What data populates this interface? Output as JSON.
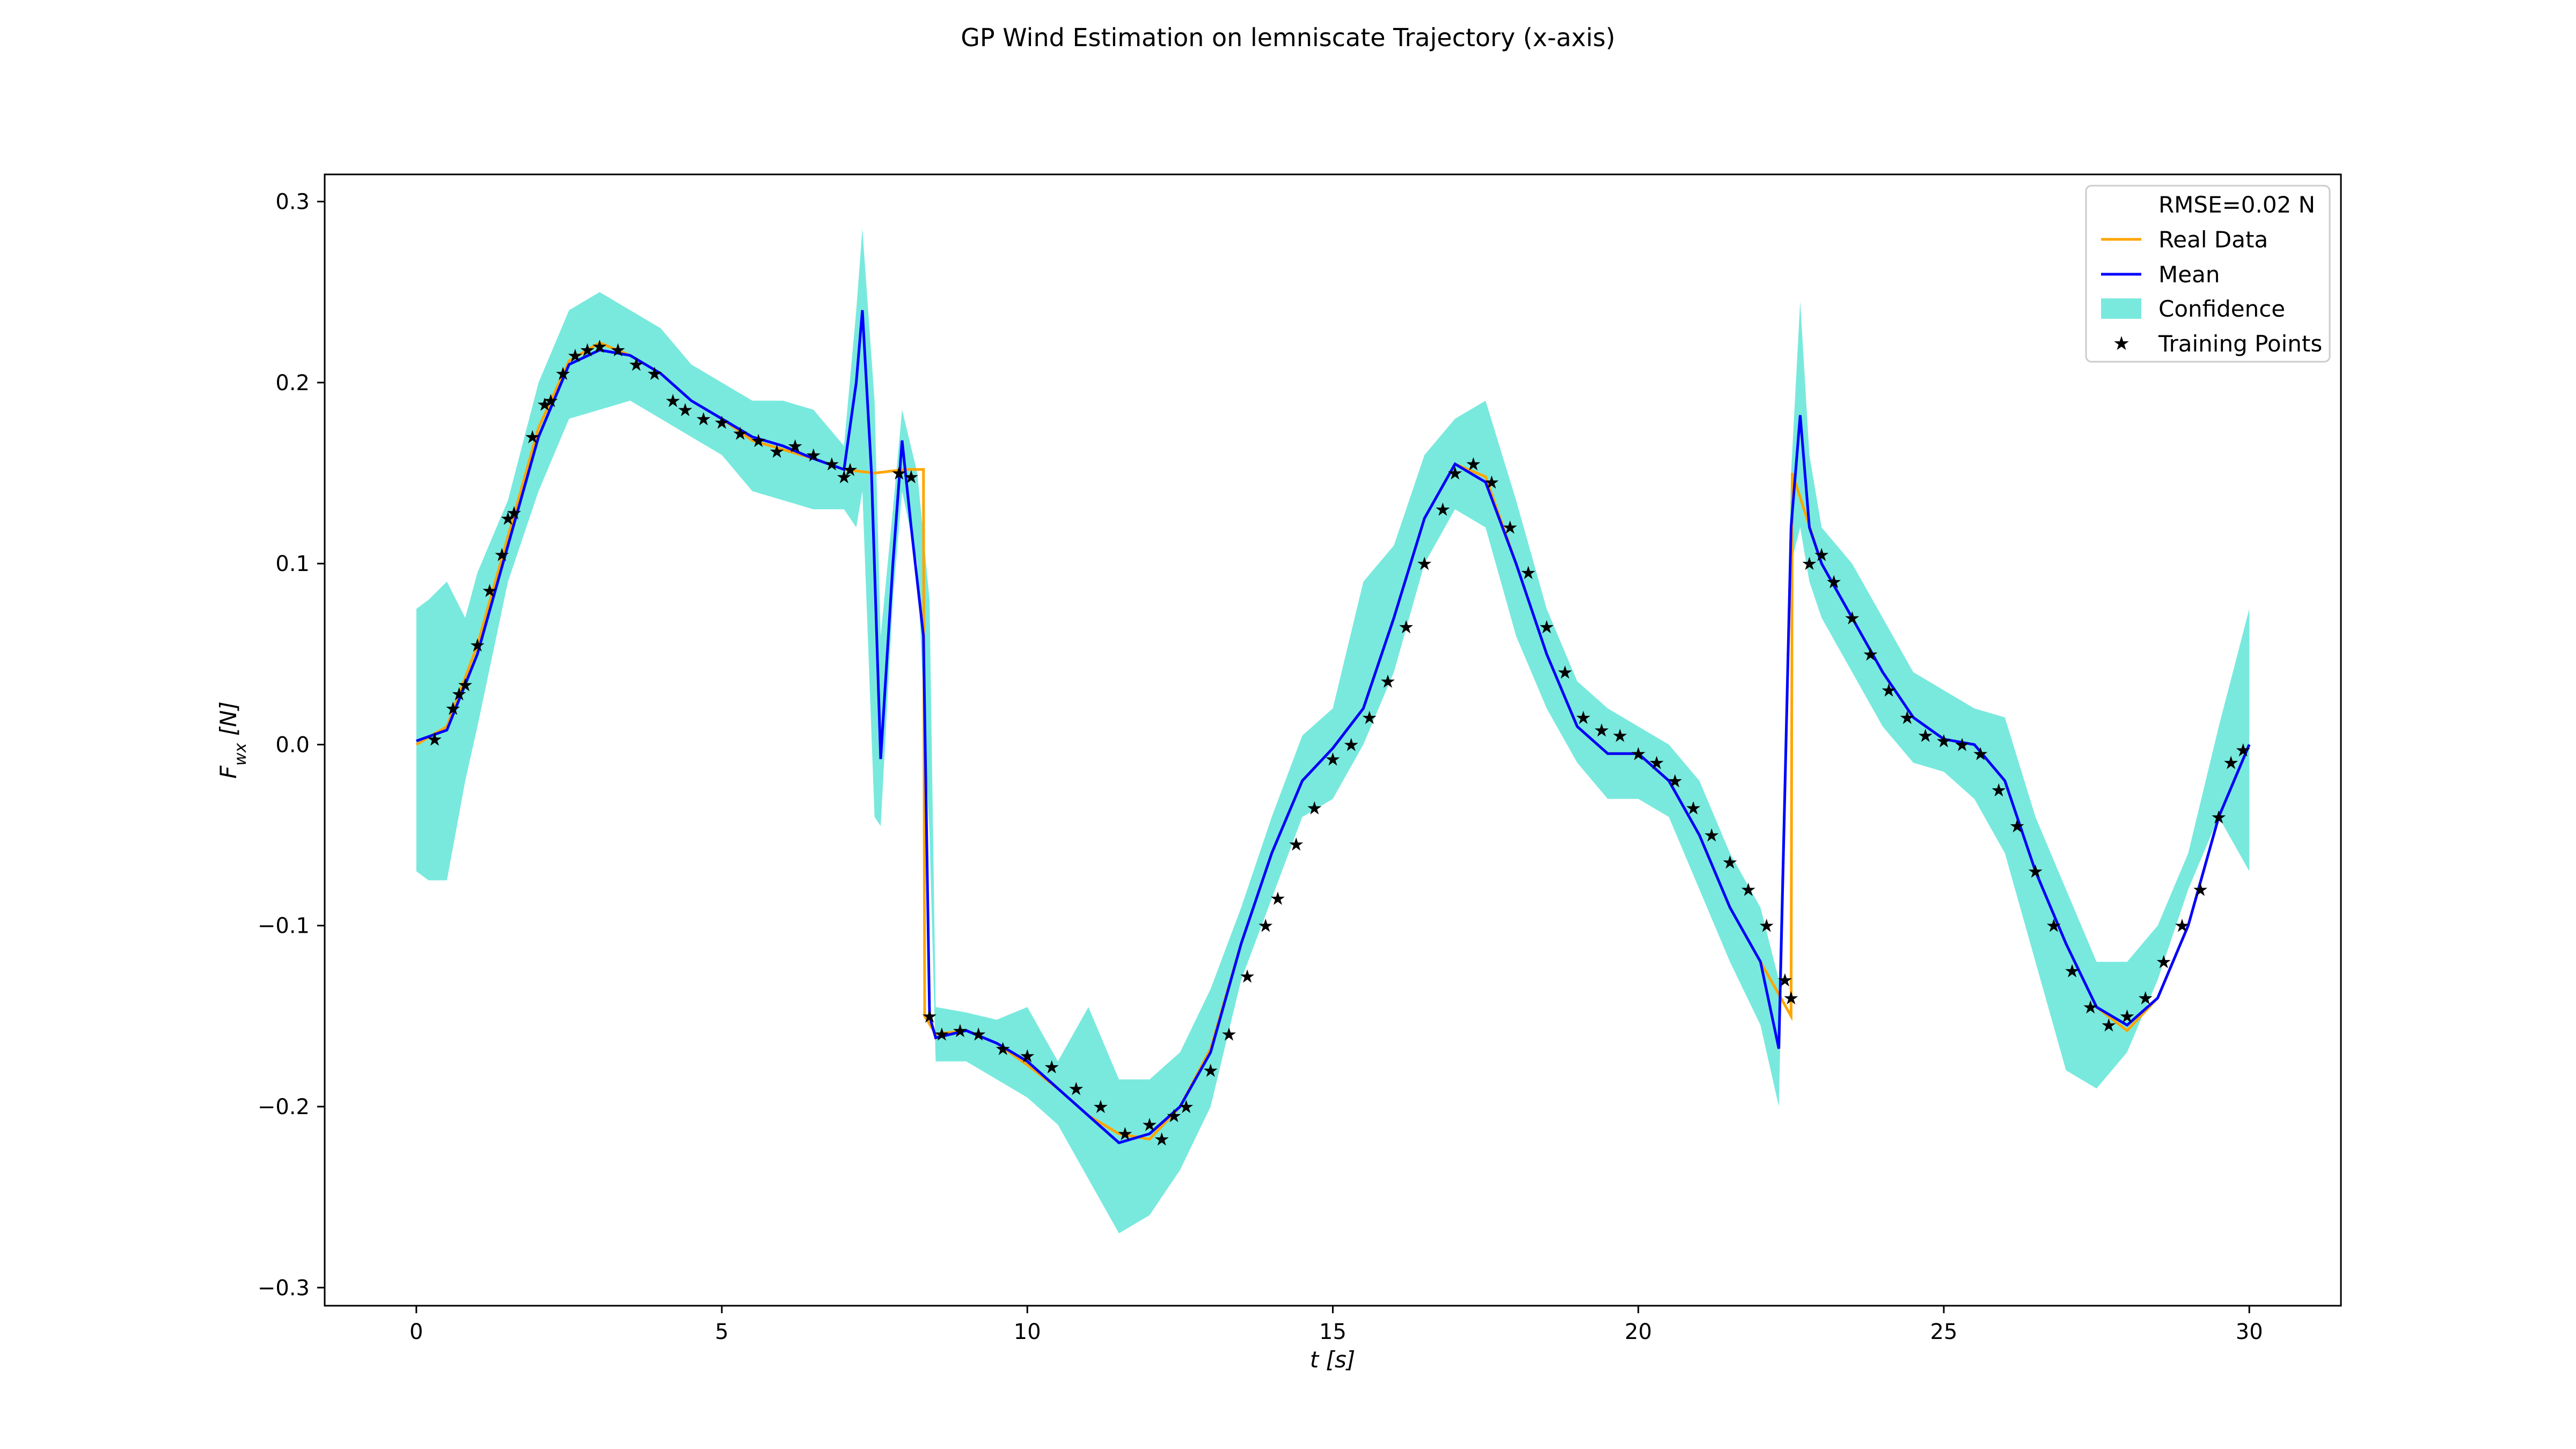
{
  "chart_data": {
    "type": "line",
    "title": "GP Wind Estimation on lemniscate Trajectory (x-axis)",
    "xlabel": "t [s]",
    "ylabel": "F_wx [N]",
    "xlim": [
      -1.5,
      31.5
    ],
    "ylim": [
      -0.31,
      0.315
    ],
    "xticks": [
      0,
      5,
      10,
      15,
      20,
      25,
      30
    ],
    "yticks": [
      -0.3,
      -0.2,
      -0.1,
      0.0,
      0.1,
      0.2,
      0.3
    ],
    "xtick_labels": [
      "0",
      "5",
      "10",
      "15",
      "20",
      "25",
      "30"
    ],
    "ytick_labels": [
      "−0.3",
      "−0.2",
      "−0.1",
      "0.0",
      "0.1",
      "0.2",
      "0.3"
    ],
    "grid": false,
    "legend_position": "top-right",
    "legend": {
      "rmse": "RMSE=0.02 N",
      "real": "Real Data",
      "mean": "Mean",
      "confidence": "Confidence",
      "training": "Training Points"
    },
    "colors": {
      "real": "#ffa500",
      "mean": "#0000ff",
      "confidence": "#40e0d0",
      "training": "#000000"
    },
    "mean_curve": {
      "x": [
        0,
        0.5,
        1.0,
        1.5,
        2.0,
        2.5,
        3.0,
        3.5,
        4.0,
        4.5,
        5.0,
        5.5,
        6.0,
        6.5,
        7.0,
        7.2,
        7.3,
        7.45,
        7.6,
        7.8,
        7.95,
        8.1,
        8.3,
        8.4,
        8.5,
        9.0,
        9.5,
        10.0,
        10.5,
        11.0,
        11.5,
        12.0,
        12.5,
        13.0,
        13.5,
        14.0,
        14.5,
        15.0,
        15.5,
        16.0,
        16.5,
        17.0,
        17.5,
        18.0,
        18.5,
        19.0,
        19.5,
        20.0,
        20.5,
        21.0,
        21.5,
        22.0,
        22.3,
        22.5,
        22.65,
        22.8,
        23.0,
        23.5,
        24.0,
        24.5,
        25.0,
        25.5,
        26.0,
        26.5,
        27.0,
        27.5,
        28.0,
        28.5,
        29.0,
        29.5,
        30.0
      ],
      "y": [
        0.002,
        0.008,
        0.05,
        0.11,
        0.17,
        0.21,
        0.218,
        0.215,
        0.205,
        0.19,
        0.18,
        0.17,
        0.165,
        0.158,
        0.152,
        0.2,
        0.24,
        0.15,
        -0.008,
        0.1,
        0.168,
        0.12,
        0.06,
        -0.15,
        -0.162,
        -0.158,
        -0.165,
        -0.175,
        -0.19,
        -0.205,
        -0.22,
        -0.215,
        -0.2,
        -0.17,
        -0.11,
        -0.06,
        -0.02,
        -0.002,
        0.02,
        0.07,
        0.125,
        0.155,
        0.145,
        0.1,
        0.05,
        0.01,
        -0.005,
        -0.005,
        -0.02,
        -0.05,
        -0.09,
        -0.12,
        -0.168,
        0.12,
        0.182,
        0.12,
        0.1,
        0.07,
        0.04,
        0.015,
        0.003,
        0.0,
        -0.02,
        -0.07,
        -0.11,
        -0.145,
        -0.155,
        -0.14,
        -0.1,
        -0.04,
        0.0
      ]
    },
    "real_data": {
      "x": [
        0,
        0.5,
        1.0,
        1.5,
        2.0,
        2.5,
        3.0,
        3.5,
        4.0,
        4.5,
        5.0,
        5.5,
        6.0,
        6.5,
        7.0,
        7.5,
        8.0,
        8.3,
        8.32,
        8.5,
        9.0,
        9.5,
        10.0,
        10.5,
        11.0,
        11.5,
        12.0,
        12.5,
        13.0,
        13.5,
        14.0,
        14.5,
        15.0,
        15.5,
        16.0,
        16.5,
        17.0,
        17.5,
        18.0,
        18.5,
        19.0,
        19.5,
        20.0,
        20.5,
        21.0,
        21.5,
        22.0,
        22.5,
        22.52,
        23.0,
        23.5,
        24.0,
        24.5,
        25.0,
        25.5,
        26.0,
        26.5,
        27.0,
        27.5,
        28.0,
        28.5,
        29.0,
        29.5,
        30.0
      ],
      "y": [
        0.0,
        0.01,
        0.055,
        0.115,
        0.175,
        0.212,
        0.222,
        0.215,
        0.205,
        0.19,
        0.18,
        0.168,
        0.163,
        0.158,
        0.152,
        0.15,
        0.152,
        0.152,
        -0.15,
        -0.16,
        -0.158,
        -0.165,
        -0.177,
        -0.19,
        -0.205,
        -0.215,
        -0.218,
        -0.2,
        -0.168,
        -0.11,
        -0.06,
        -0.02,
        -0.002,
        0.02,
        0.07,
        0.125,
        0.155,
        0.148,
        0.1,
        0.05,
        0.01,
        -0.005,
        -0.005,
        -0.02,
        -0.05,
        -0.09,
        -0.12,
        -0.15,
        0.15,
        0.1,
        0.07,
        0.04,
        0.015,
        0.003,
        0.0,
        -0.02,
        -0.07,
        -0.11,
        -0.145,
        -0.158,
        -0.14,
        -0.1,
        -0.04,
        0.0
      ]
    },
    "confidence_band": {
      "x": [
        0,
        0.2,
        0.5,
        0.8,
        1.0,
        1.5,
        2.0,
        2.5,
        3.0,
        3.5,
        4.0,
        4.5,
        5.0,
        5.5,
        6.0,
        6.5,
        7.0,
        7.2,
        7.3,
        7.5,
        7.6,
        7.8,
        7.95,
        8.2,
        8.4,
        8.5,
        9.0,
        9.5,
        10.0,
        10.5,
        11.0,
        11.5,
        12.0,
        12.5,
        13.0,
        13.5,
        14.0,
        14.5,
        15.0,
        15.5,
        16.0,
        16.5,
        17.0,
        17.5,
        18.0,
        18.5,
        19.0,
        19.5,
        20.0,
        20.5,
        21.0,
        21.5,
        22.0,
        22.3,
        22.5,
        22.65,
        22.8,
        23.0,
        23.5,
        24.0,
        24.5,
        25.0,
        25.5,
        26.0,
        26.5,
        27.0,
        27.5,
        28.0,
        28.5,
        29.0,
        29.5,
        30.0
      ],
      "upper": [
        0.075,
        0.08,
        0.09,
        0.07,
        0.095,
        0.135,
        0.2,
        0.24,
        0.25,
        0.24,
        0.23,
        0.21,
        0.2,
        0.19,
        0.19,
        0.185,
        0.165,
        0.24,
        0.285,
        0.19,
        0.06,
        0.13,
        0.185,
        0.15,
        0.08,
        -0.145,
        -0.148,
        -0.152,
        -0.145,
        -0.175,
        -0.145,
        -0.185,
        -0.185,
        -0.17,
        -0.135,
        -0.09,
        -0.04,
        0.005,
        0.02,
        0.09,
        0.11,
        0.16,
        0.18,
        0.19,
        0.135,
        0.075,
        0.035,
        0.02,
        0.01,
        0.0,
        -0.02,
        -0.06,
        -0.09,
        -0.13,
        0.15,
        0.245,
        0.16,
        0.12,
        0.1,
        0.07,
        0.04,
        0.03,
        0.02,
        0.015,
        -0.04,
        -0.08,
        -0.12,
        -0.12,
        -0.1,
        -0.06,
        0.01,
        0.075
      ],
      "lower": [
        -0.07,
        -0.075,
        -0.075,
        -0.02,
        0.01,
        0.09,
        0.14,
        0.18,
        0.185,
        0.19,
        0.18,
        0.17,
        0.16,
        0.14,
        0.135,
        0.13,
        0.13,
        0.12,
        0.14,
        -0.04,
        -0.045,
        0.08,
        0.14,
        0.1,
        -0.05,
        -0.175,
        -0.175,
        -0.185,
        -0.195,
        -0.21,
        -0.24,
        -0.27,
        -0.26,
        -0.235,
        -0.2,
        -0.13,
        -0.085,
        -0.04,
        -0.03,
        0.0,
        0.04,
        0.1,
        0.13,
        0.12,
        0.06,
        0.02,
        -0.01,
        -0.03,
        -0.03,
        -0.04,
        -0.08,
        -0.12,
        -0.155,
        -0.2,
        0.1,
        0.12,
        0.09,
        0.07,
        0.04,
        0.01,
        -0.01,
        -0.015,
        -0.03,
        -0.06,
        -0.12,
        -0.18,
        -0.19,
        -0.17,
        -0.13,
        -0.08,
        -0.04,
        -0.07
      ]
    },
    "training_points": {
      "x": [
        0.3,
        0.6,
        0.7,
        0.8,
        1.0,
        1.2,
        1.4,
        1.5,
        1.6,
        1.9,
        2.1,
        2.2,
        2.4,
        2.6,
        2.8,
        3.0,
        3.3,
        3.6,
        3.9,
        4.2,
        4.4,
        4.7,
        5.0,
        5.3,
        5.6,
        5.9,
        6.2,
        6.5,
        6.8,
        7.0,
        7.1,
        7.9,
        8.1,
        8.4,
        8.6,
        8.9,
        9.2,
        9.6,
        10.0,
        10.4,
        10.8,
        11.2,
        11.6,
        12.0,
        12.2,
        12.4,
        12.6,
        13.0,
        13.3,
        13.6,
        13.9,
        14.1,
        14.4,
        14.7,
        15.0,
        15.3,
        15.6,
        15.9,
        16.2,
        16.5,
        16.8,
        17.0,
        17.3,
        17.6,
        17.9,
        18.2,
        18.5,
        18.8,
        19.1,
        19.4,
        19.7,
        20.0,
        20.3,
        20.6,
        20.9,
        21.2,
        21.5,
        21.8,
        22.1,
        22.4,
        22.5,
        22.8,
        23.0,
        23.2,
        23.5,
        23.8,
        24.1,
        24.4,
        24.7,
        25.0,
        25.3,
        25.6,
        25.9,
        26.2,
        26.5,
        26.8,
        27.1,
        27.4,
        27.7,
        28.0,
        28.3,
        28.6,
        28.9,
        29.2,
        29.5,
        29.7,
        29.9
      ],
      "y": [
        0.003,
        0.02,
        0.028,
        0.033,
        0.055,
        0.085,
        0.105,
        0.125,
        0.128,
        0.17,
        0.188,
        0.19,
        0.205,
        0.215,
        0.218,
        0.22,
        0.218,
        0.21,
        0.205,
        0.19,
        0.185,
        0.18,
        0.178,
        0.172,
        0.168,
        0.162,
        0.165,
        0.16,
        0.155,
        0.148,
        0.152,
        0.15,
        0.148,
        -0.15,
        -0.16,
        -0.158,
        -0.16,
        -0.168,
        -0.172,
        -0.178,
        -0.19,
        -0.2,
        -0.215,
        -0.21,
        -0.218,
        -0.205,
        -0.2,
        -0.18,
        -0.16,
        -0.128,
        -0.1,
        -0.085,
        -0.055,
        -0.035,
        -0.008,
        0.0,
        0.015,
        0.035,
        0.065,
        0.1,
        0.13,
        0.15,
        0.155,
        0.145,
        0.12,
        0.095,
        0.065,
        0.04,
        0.015,
        0.008,
        0.005,
        -0.005,
        -0.01,
        -0.02,
        -0.035,
        -0.05,
        -0.065,
        -0.08,
        -0.1,
        -0.13,
        -0.14,
        0.1,
        0.105,
        0.09,
        0.07,
        0.05,
        0.03,
        0.015,
        0.005,
        0.002,
        0.0,
        -0.005,
        -0.025,
        -0.045,
        -0.07,
        -0.1,
        -0.125,
        -0.145,
        -0.155,
        -0.15,
        -0.14,
        -0.12,
        -0.1,
        -0.08,
        -0.04,
        -0.01,
        -0.003
      ]
    }
  }
}
